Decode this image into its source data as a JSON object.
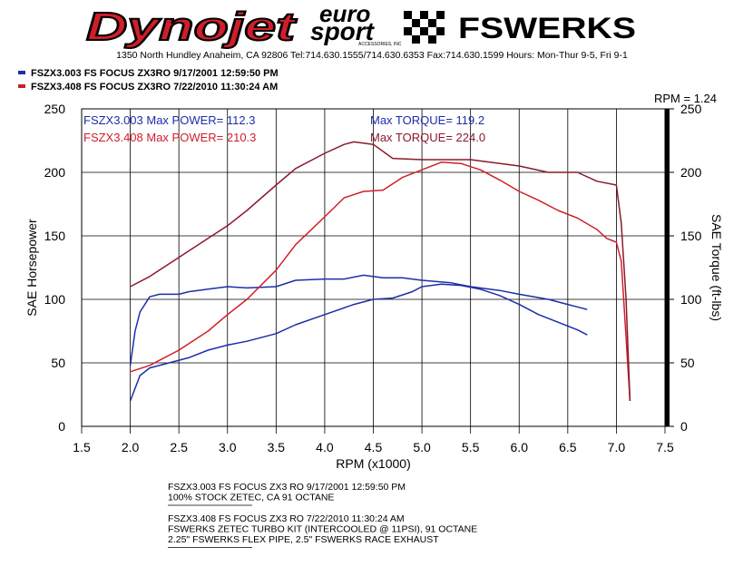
{
  "header": {
    "logo_dynojet": "Dynojet",
    "logo_euro": "euro",
    "logo_sport": "sport",
    "logo_accessories": "ACCESSORIES, INC",
    "logo_fswerks": "FSWERKS",
    "address": "1350 North Hundley  Anaheim, CA 92806  Tel:714.630.1555/714.630.6353  Fax:714.630.1599  Hours: Mon-Thur 9-5, Fri 9-1"
  },
  "legend": [
    {
      "text": "FSZX3.003   FS FOCUS ZX3RO   9/17/2001 12:59:50 PM",
      "color": "#1c2fa8"
    },
    {
      "text": "FSZX3.408   FS FOCUS ZX3RO   7/22/2010 11:30:24 AM",
      "color": "#d01e2a"
    }
  ],
  "chart_data": {
    "type": "line",
    "rpm_note": "RPM = 1.24",
    "xlabel": "RPM (x1000)",
    "ylabel": "SAE Horsepower",
    "y2label": "SAE Torque (ft-lbs)",
    "xlim": [
      1.5,
      7.5
    ],
    "xticks": [
      1.5,
      {
        "value": 2,
        "label": "2.0"
      },
      2.5,
      {
        "value": 3,
        "label": "3.0"
      },
      3.5,
      {
        "value": 4,
        "label": "4.0"
      },
      4.5,
      {
        "value": 5,
        "label": "5.0"
      },
      5.5,
      {
        "value": 6,
        "label": "6.0"
      },
      6.5,
      {
        "value": 7,
        "label": "7.0"
      },
      7.5
    ],
    "ylim": [
      0,
      250
    ],
    "yticks": [
      0,
      50,
      100,
      150,
      200,
      250
    ],
    "y2lim": [
      0,
      250
    ],
    "y2ticks": [
      0,
      50,
      100,
      150,
      200,
      250
    ],
    "grid": true,
    "annotations": [
      {
        "text": "FSZX3.003  Max POWER= 112.3",
        "color": "#1c2fa8"
      },
      {
        "text": "Max TORQUE= 119.2",
        "color": "#1c2fa8"
      },
      {
        "text": "FSZX3.408  Max POWER= 210.3",
        "color": "#d01e2a"
      },
      {
        "text": "Max TORQUE= 224.0",
        "color": "#8a1a2c"
      }
    ],
    "series": [
      {
        "color": "#1c2fa8",
        "x": [
          2.0,
          2.1,
          2.2,
          2.4,
          2.6,
          2.8,
          3.0,
          3.2,
          3.5,
          3.7,
          4.0,
          4.3,
          4.5,
          4.7,
          4.9,
          5.0,
          5.2,
          5.4,
          5.6,
          5.8,
          6.0,
          6.2,
          6.4,
          6.6,
          6.7
        ],
        "values": [
          20,
          40,
          46,
          50,
          54,
          60,
          64,
          67,
          73,
          80,
          88,
          96,
          100,
          101,
          106,
          110,
          112,
          111,
          108,
          103,
          96,
          88,
          82,
          76,
          72
        ]
      },
      {
        "color": "#1c2fa8",
        "axis": "y2",
        "x": [
          2.0,
          2.05,
          2.1,
          2.2,
          2.3,
          2.5,
          2.6,
          2.8,
          3.0,
          3.2,
          3.5,
          3.7,
          4.0,
          4.2,
          4.4,
          4.6,
          4.8,
          5.0,
          5.3,
          5.5,
          5.8,
          6.0,
          6.3,
          6.5,
          6.7
        ],
        "values": [
          48,
          75,
          90,
          102,
          104,
          104,
          106,
          108,
          110,
          109,
          110,
          115,
          116,
          116,
          119,
          117,
          117,
          115,
          113,
          110,
          107,
          104,
          100,
          96,
          92
        ]
      },
      {
        "color": "#d01e2a",
        "x": [
          2.0,
          2.2,
          2.5,
          2.8,
          3.0,
          3.2,
          3.5,
          3.7,
          4.0,
          4.2,
          4.4,
          4.6,
          4.8,
          5.0,
          5.2,
          5.4,
          5.6,
          5.8,
          6.0,
          6.2,
          6.4,
          6.6,
          6.8,
          6.9,
          7.0,
          7.05,
          7.1,
          7.14
        ],
        "values": [
          43,
          48,
          60,
          75,
          88,
          100,
          123,
          143,
          165,
          180,
          185,
          186,
          196,
          202,
          208,
          207,
          202,
          194,
          185,
          178,
          170,
          164,
          155,
          148,
          145,
          130,
          70,
          20
        ]
      },
      {
        "color": "#8a1a2c",
        "axis": "y2",
        "x": [
          2.0,
          2.2,
          2.5,
          2.8,
          3.0,
          3.2,
          3.5,
          3.7,
          4.0,
          4.2,
          4.3,
          4.5,
          4.7,
          5.0,
          5.5,
          6.0,
          6.3,
          6.6,
          6.8,
          7.0,
          7.05,
          7.1,
          7.14
        ],
        "values": [
          110,
          118,
          133,
          148,
          158,
          170,
          190,
          203,
          215,
          222,
          224,
          222,
          211,
          210,
          210,
          205,
          200,
          200,
          193,
          190,
          160,
          100,
          20
        ]
      }
    ]
  },
  "notes": [
    [
      "FSZX3.003   FS FOCUS ZX3     RO   9/17/2001 12:59:50 PM",
      "100% STOCK ZETEC, CA 91 OCTANE"
    ],
    [
      "FSZX3.408   FS FOCUS ZX3     RO   7/22/2010 11:30:24 AM",
      "FSWERKS ZETEC TURBO KIT (INTERCOOLED @ 11PSI), 91 OCTANE",
      "2.25\" FSWERKS FLEX PIPE, 2.5\" FSWERKS RACE EXHAUST"
    ]
  ]
}
